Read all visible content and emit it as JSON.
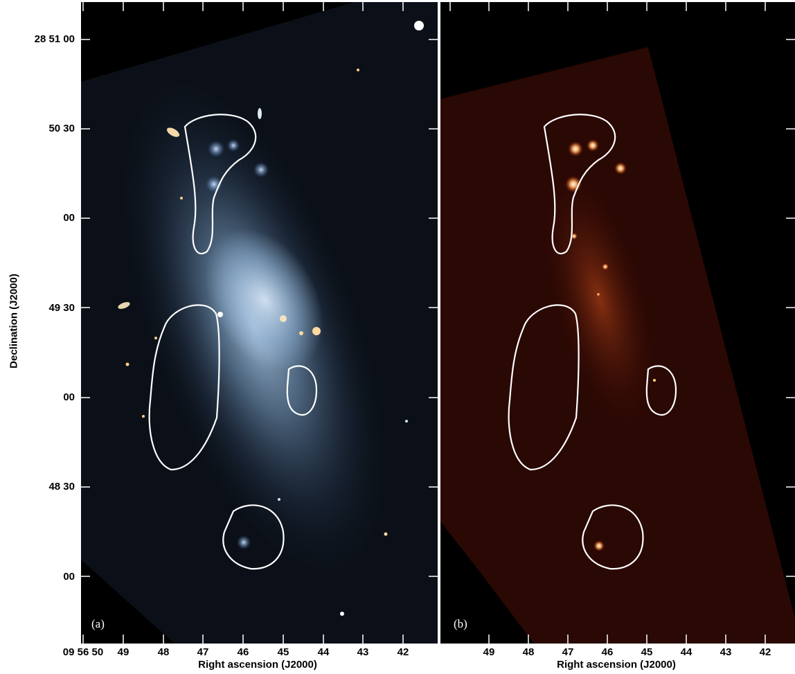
{
  "panel_a": {
    "label": "(a)"
  },
  "panel_b": {
    "label": "(b)"
  },
  "y_axis": {
    "title": "Declination (J2000)",
    "ticks": [
      "28 51 00",
      "50 30",
      "00",
      "49 30",
      "00",
      "48 30",
      "00"
    ]
  },
  "x_axis_a": {
    "title": "Right ascension (J2000)",
    "ticks": [
      "09 56 50",
      "49",
      "48",
      "47",
      "46",
      "45",
      "44",
      "43",
      "42"
    ]
  },
  "x_axis_b": {
    "title": "Right ascension (J2000)",
    "ticks": [
      "49",
      "48",
      "47",
      "46",
      "45",
      "44",
      "43",
      "42"
    ]
  },
  "colors": {
    "panel_a_background": "#0b1018",
    "panel_a_galaxy": "#9fc3e6",
    "panel_b_field": "#2a0804",
    "panel_b_emission": "#ffb060",
    "contour": "#ffffff"
  }
}
